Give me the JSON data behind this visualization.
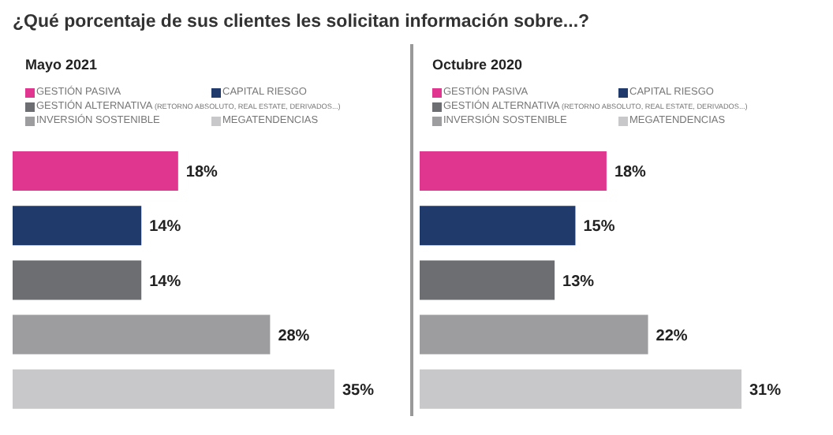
{
  "chart_data": [
    {
      "type": "bar",
      "orientation": "horizontal",
      "stacked": true,
      "title": "¿Qué porcentaje de sus clientes les solicitan información sobre...?",
      "subtitle": "Mayo 2021",
      "categories": [
        null,
        null,
        null,
        null,
        null
      ],
      "series": [
        {
          "name": "GESTIÓN PASIVA",
          "color": "#e0368f",
          "values": [
            18,
            null,
            null,
            null,
            null
          ],
          "value_labels": [
            "18%",
            null,
            null,
            null,
            null
          ]
        },
        {
          "name": "CAPITAL RIESGO",
          "color": "#1f3a6b",
          "values": [
            null,
            14,
            null,
            null,
            null
          ],
          "value_labels": [
            null,
            "14%",
            null,
            null,
            null
          ]
        },
        {
          "name": "GESTIÓN ALTERNATIVA (RETORNO ABSOLUTO, REAL ESTATE, DERIVADOS...)",
          "color": "#6d6e71",
          "values": [
            null,
            null,
            14,
            null,
            null
          ],
          "value_labels": [
            null,
            null,
            "14%",
            null,
            null
          ]
        },
        {
          "name": "INVERSIÓN SOSTENIBLE",
          "color": "#9d9d9f",
          "values": [
            null,
            null,
            null,
            28,
            null
          ],
          "value_labels": [
            null,
            null,
            null,
            "28%",
            null
          ]
        },
        {
          "name": "MEGATENDENCIAS",
          "color": "#c8c8ca",
          "values": [
            null,
            null,
            null,
            null,
            35
          ],
          "value_labels": [
            null,
            null,
            null,
            null,
            "35%"
          ]
        }
      ],
      "legend": "top left",
      "tick_labels": false
    },
    {
      "type": "bar",
      "orientation": "horizontal",
      "stacked": true,
      "subtitle": "Octubre 2020",
      "categories": [
        null,
        null,
        null,
        null,
        null
      ],
      "series": [
        {
          "name": "GESTIÓN PASIVA",
          "color": "#e0368f",
          "values": [
            18,
            null,
            null,
            null,
            null
          ],
          "value_labels": [
            "18%",
            null,
            null,
            null,
            null
          ]
        },
        {
          "name": "CAPITAL RIESGO",
          "color": "#1f3a6b",
          "values": [
            null,
            15,
            null,
            null,
            null
          ],
          "value_labels": [
            null,
            "15%",
            null,
            null,
            null
          ]
        },
        {
          "name": "GESTIÓN ALTERNATIVA (RETORNO ABSOLUTO, REAL ESTATE, DERIVADOS...)",
          "color": "#6d6e71",
          "values": [
            null,
            null,
            13,
            null,
            null
          ],
          "value_labels": [
            null,
            null,
            "13%",
            null,
            null
          ]
        },
        {
          "name": "INVERSIÓN SOSTENIBLE",
          "color": "#9d9d9f",
          "values": [
            null,
            null,
            null,
            22,
            null
          ],
          "value_labels": [
            null,
            null,
            null,
            "22%",
            null
          ]
        },
        {
          "name": "MEGATENDENCIAS",
          "color": "#c8c8ca",
          "values": [
            null,
            null,
            null,
            null,
            31
          ],
          "value_labels": [
            null,
            null,
            null,
            null,
            "31%"
          ]
        }
      ],
      "legend": "top left",
      "tick_labels": false
    }
  ]
}
